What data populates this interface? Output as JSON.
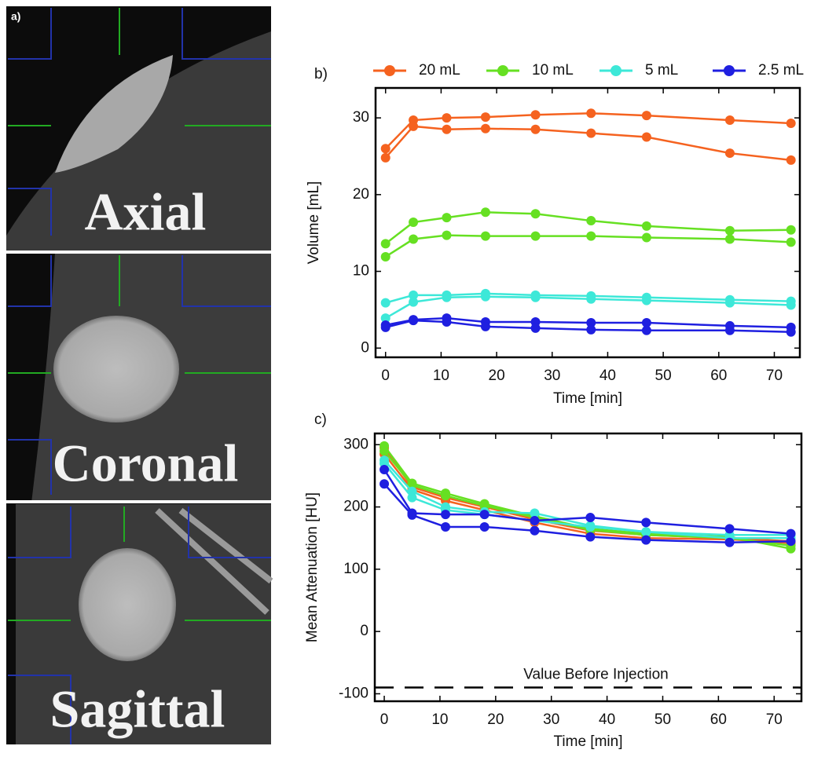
{
  "image_panel": {
    "label": "a)",
    "views": [
      "Axial",
      "Coronal",
      "Sagittal"
    ]
  },
  "chart_data": [
    {
      "type": "line",
      "label": "b)",
      "xlabel": "Time [min]",
      "ylabel": "Volume [mL]",
      "x": [
        0,
        5,
        11,
        18,
        27,
        37,
        47,
        62,
        73
      ],
      "xlim": [
        -1.8,
        74.6
      ],
      "xticks": [
        0,
        10,
        20,
        30,
        40,
        50,
        60,
        70
      ],
      "ylim": [
        -1.2,
        33.9
      ],
      "yticks": [
        0,
        10,
        20,
        30
      ],
      "series": [
        {
          "name": "20 mL",
          "color": "#f5621f",
          "runs": [
            [
              26,
              29.7,
              30,
              30.1,
              30.4,
              30.6,
              30.3,
              29.7,
              29.3
            ],
            [
              24.8,
              28.9,
              28.5,
              28.6,
              28.5,
              28.0,
              27.5,
              25.4,
              24.5
            ]
          ]
        },
        {
          "name": "10 mL",
          "color": "#66e022",
          "runs": [
            [
              13.6,
              16.4,
              17.0,
              17.7,
              17.5,
              16.6,
              15.9,
              15.3,
              15.4
            ],
            [
              11.9,
              14.2,
              14.7,
              14.6,
              14.6,
              14.6,
              14.4,
              14.2,
              13.8
            ]
          ]
        },
        {
          "name": "5 mL",
          "color": "#3de8d8",
          "runs": [
            [
              5.9,
              6.9,
              6.9,
              7.1,
              6.9,
              6.8,
              6.6,
              6.3,
              6.1
            ],
            [
              3.9,
              6.0,
              6.6,
              6.7,
              6.6,
              6.4,
              6.2,
              5.9,
              5.6
            ]
          ]
        },
        {
          "name": "2.5 mL",
          "color": "#1f1fe0",
          "runs": [
            [
              3.0,
              3.7,
              3.9,
              3.4,
              3.4,
              3.3,
              3.3,
              2.9,
              2.7
            ],
            [
              2.7,
              3.6,
              3.4,
              2.8,
              2.6,
              2.4,
              2.3,
              2.3,
              2.1
            ]
          ]
        }
      ]
    },
    {
      "type": "line",
      "label": "c)",
      "xlabel": "Time [min]",
      "ylabel": "Mean Attenuation [HU]",
      "x": [
        0,
        5,
        11,
        18,
        27,
        37,
        47,
        62,
        73
      ],
      "xlim": [
        -1.7,
        74.9
      ],
      "xticks": [
        0,
        10,
        20,
        30,
        40,
        50,
        60,
        70
      ],
      "ylim": [
        -112,
        318
      ],
      "yticks": [
        -100,
        0,
        100,
        200,
        300
      ],
      "reference": {
        "value": -90,
        "label": "Value Before Injection"
      },
      "series": [
        {
          "color": "#f5621f",
          "runs": [
            [
              285,
              228,
              210,
              195,
              175,
              157,
              150,
              148,
              142
            ],
            [
              295,
              232,
              215,
              200,
              180,
              162,
              155,
              150,
              145
            ]
          ]
        },
        {
          "color": "#66e022",
          "runs": [
            [
              298,
              238,
              222,
              205,
              185,
              165,
              157,
              152,
              133
            ],
            [
              290,
              235,
              218,
              202,
              183,
              163,
              155,
              150,
              138
            ]
          ]
        },
        {
          "color": "#3de8d8",
          "runs": [
            [
              275,
              225,
              200,
              192,
              190,
              170,
              160,
              155,
              155
            ],
            [
              270,
              215,
              195,
              188,
              178,
              168,
              160,
              150,
              150
            ]
          ]
        },
        {
          "color": "#1f1fe0",
          "runs": [
            [
              260,
              190,
              188,
              188,
              178,
              183,
              175,
              165,
              157
            ],
            [
              237,
              187,
              168,
              168,
              162,
              152,
              147,
              143,
              145
            ]
          ]
        }
      ]
    }
  ]
}
